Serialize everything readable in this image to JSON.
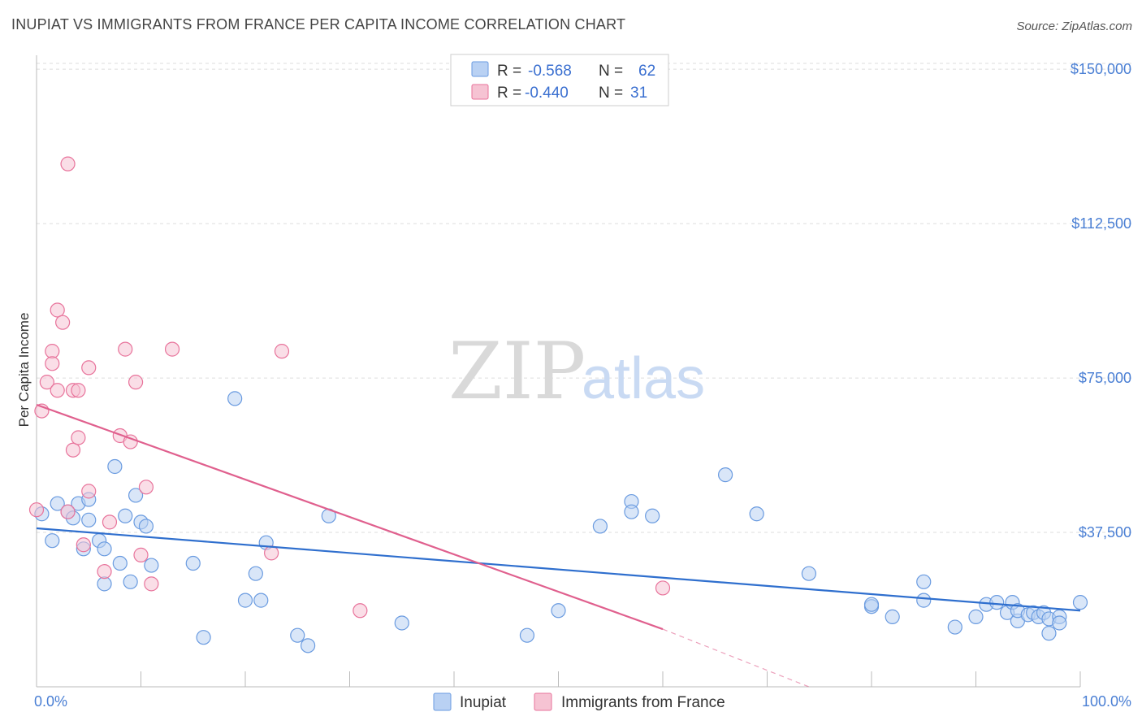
{
  "title": "INUPIAT VS IMMIGRANTS FROM FRANCE PER CAPITA INCOME CORRELATION CHART",
  "source": "Source: ZipAtlas.com",
  "watermark": {
    "zip": "ZIP",
    "atlas": "atlas"
  },
  "colors": {
    "blue": "#6a9be0",
    "blue_fill": "#b9d1f3",
    "pink": "#e8739b",
    "pink_fill": "#f6c3d3",
    "blue_line": "#2f6fce",
    "pink_line": "#e0608e"
  },
  "legend_top": [
    {
      "r_label": "R =",
      "r_value": "-0.568",
      "n_label": "N =",
      "n_value": "62"
    },
    {
      "r_label": "R =",
      "r_value": "-0.440",
      "n_label": "N =",
      "n_value": "31"
    }
  ],
  "legend_bottom": [
    "Inupiat",
    "Immigrants from France"
  ],
  "chart_data": {
    "type": "scatter",
    "xlabel": "",
    "ylabel": "Per Capita Income",
    "xlim": [
      0,
      100
    ],
    "ylim": [
      0,
      152000
    ],
    "x_tick_labels": [
      "0.0%",
      "100.0%"
    ],
    "y_ticks": [
      37500,
      75000,
      112500,
      150000
    ],
    "y_tick_labels": [
      "$37,500",
      "$75,000",
      "$112,500",
      "$150,000"
    ],
    "grid": true,
    "series": [
      {
        "name": "Inupiat",
        "points": [
          [
            0.5,
            42000
          ],
          [
            1.5,
            35500
          ],
          [
            2,
            44500
          ],
          [
            3,
            42500
          ],
          [
            3.5,
            41000
          ],
          [
            4,
            44500
          ],
          [
            4.5,
            33500
          ],
          [
            5,
            40500
          ],
          [
            5,
            45500
          ],
          [
            6,
            35500
          ],
          [
            6.5,
            25000
          ],
          [
            6.5,
            33500
          ],
          [
            7.5,
            53500
          ],
          [
            8,
            30000
          ],
          [
            8.5,
            41500
          ],
          [
            9,
            25500
          ],
          [
            9.5,
            46500
          ],
          [
            10,
            40000
          ],
          [
            10.5,
            39000
          ],
          [
            11,
            29500
          ],
          [
            15,
            30000
          ],
          [
            16,
            12000
          ],
          [
            19,
            70000
          ],
          [
            20,
            21000
          ],
          [
            21,
            27500
          ],
          [
            21.5,
            21000
          ],
          [
            22,
            35000
          ],
          [
            25,
            12500
          ],
          [
            26,
            10000
          ],
          [
            28,
            41500
          ],
          [
            35,
            15500
          ],
          [
            47,
            12500
          ],
          [
            50,
            18500
          ],
          [
            54,
            39000
          ],
          [
            57,
            45000
          ],
          [
            57,
            42500
          ],
          [
            59,
            41500
          ],
          [
            66,
            51500
          ],
          [
            69,
            42000
          ],
          [
            74,
            27500
          ],
          [
            80,
            19500
          ],
          [
            80,
            20000
          ],
          [
            82,
            17000
          ],
          [
            85,
            25500
          ],
          [
            85,
            21000
          ],
          [
            88,
            14500
          ],
          [
            90,
            17000
          ],
          [
            91,
            20000
          ],
          [
            92,
            20500
          ],
          [
            93,
            18000
          ],
          [
            93.5,
            20500
          ],
          [
            94,
            16000
          ],
          [
            94,
            18500
          ],
          [
            95,
            17500
          ],
          [
            95.5,
            18000
          ],
          [
            96,
            17000
          ],
          [
            96.5,
            18000
          ],
          [
            97,
            16500
          ],
          [
            97,
            13000
          ],
          [
            98,
            17000
          ],
          [
            98,
            15500
          ],
          [
            100,
            20500
          ]
        ]
      },
      {
        "name": "Immigrants from France",
        "points": [
          [
            0,
            43000
          ],
          [
            0.5,
            67000
          ],
          [
            1,
            74000
          ],
          [
            1.5,
            81500
          ],
          [
            1.5,
            78500
          ],
          [
            2,
            91500
          ],
          [
            2,
            72000
          ],
          [
            2.5,
            88500
          ],
          [
            3,
            42500
          ],
          [
            3,
            127000
          ],
          [
            3.5,
            57500
          ],
          [
            3.5,
            72000
          ],
          [
            4,
            72000
          ],
          [
            4,
            60500
          ],
          [
            4.5,
            34500
          ],
          [
            5,
            77500
          ],
          [
            5,
            47500
          ],
          [
            6.5,
            28000
          ],
          [
            7,
            40000
          ],
          [
            8,
            61000
          ],
          [
            8.5,
            82000
          ],
          [
            9,
            59500
          ],
          [
            9.5,
            74000
          ],
          [
            10,
            32000
          ],
          [
            10.5,
            48500
          ],
          [
            11,
            25000
          ],
          [
            13,
            82000
          ],
          [
            22.5,
            32500
          ],
          [
            23.5,
            81500
          ],
          [
            31,
            18500
          ],
          [
            60,
            24000
          ]
        ]
      }
    ],
    "trend_lines": [
      {
        "name": "Inupiat",
        "x": [
          0,
          100
        ],
        "y": [
          38500,
          18500
        ]
      },
      {
        "name": "Immigrants from France",
        "x": [
          0,
          60
        ],
        "y": [
          68500,
          14000
        ],
        "extension_x": [
          60,
          74
        ],
        "extension_y": [
          14000,
          0
        ]
      }
    ]
  }
}
